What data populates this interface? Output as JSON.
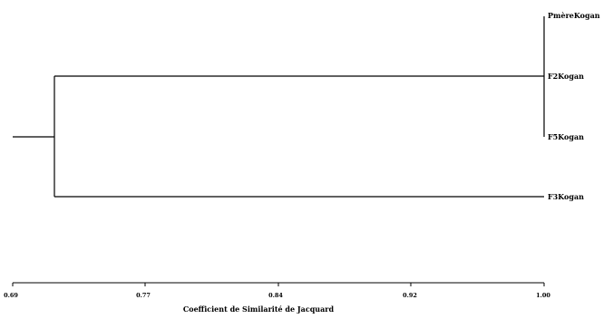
{
  "chart_data": {
    "type": "dendrogram",
    "leaves": [
      "PmèreKogan",
      "F2Kogan",
      "F5Kogan",
      "F3Kogan"
    ],
    "merges": [
      {
        "members": [
          "PmèreKogan",
          "F2Kogan",
          "F5Kogan"
        ],
        "similarity": 1.0
      },
      {
        "members": [
          "PmèreKogan",
          "F2Kogan",
          "F5Kogan",
          "F3Kogan"
        ],
        "similarity": 0.71
      }
    ],
    "x_ticks": [
      "0.69",
      "0.77",
      "0.84",
      "0.92",
      "1.00"
    ],
    "xlim": [
      0.69,
      1.0
    ],
    "xlabel": "Coefficient de Similarité de Jacquard"
  }
}
